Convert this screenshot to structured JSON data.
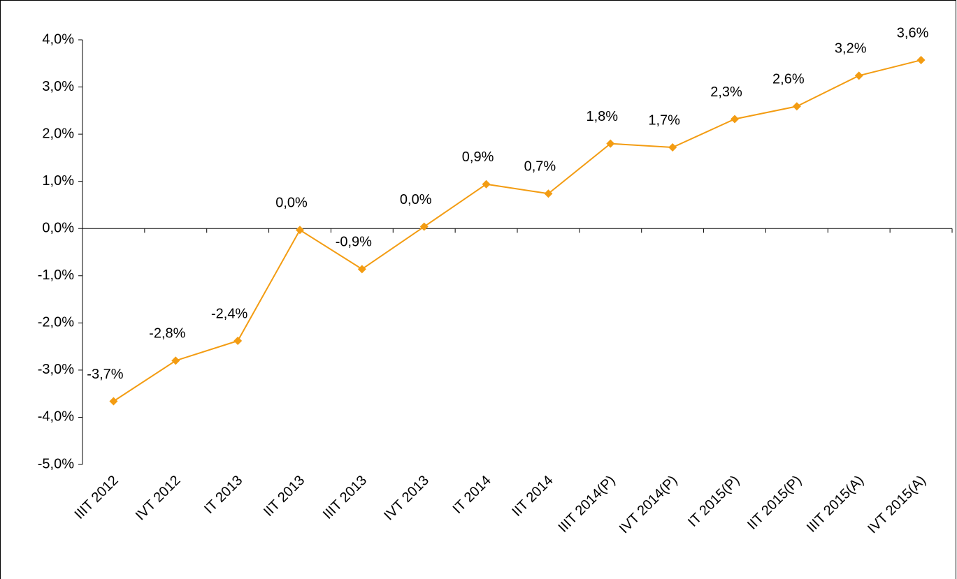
{
  "chart_data": {
    "type": "line",
    "categories": [
      "IIIT 2012",
      "IVT 2012",
      "IT 2013",
      "IIT 2013",
      "IIIT 2013",
      "IVT 2013",
      "IT 2014",
      "IIT 2014",
      "IIIT 2014(P)",
      "IVT 2014(P)",
      "IT 2015(P)",
      "IIT 2015(P)",
      "IIIT 2015(A)",
      "IVT 2015(A)"
    ],
    "values": [
      -3.66,
      -2.8,
      -2.38,
      -0.03,
      -0.86,
      0.04,
      0.94,
      0.74,
      1.8,
      1.72,
      2.32,
      2.59,
      3.24,
      3.57
    ],
    "value_labels": [
      "-3,7%",
      "-2,8%",
      "-2,4%",
      "0,0%",
      "-0,9%",
      "0,0%",
      "0,9%",
      "0,7%",
      "1,8%",
      "1,7%",
      "2,3%",
      "2,6%",
      "3,2%",
      "3,6%"
    ],
    "color": "#f39c12",
    "ylim": [
      -5,
      4
    ],
    "yticks": [
      {
        "value": -5,
        "label": "-5,0%"
      },
      {
        "value": -4,
        "label": "-4,0%"
      },
      {
        "value": -3,
        "label": "-3,0%"
      },
      {
        "value": -2,
        "label": "-2,0%"
      },
      {
        "value": -1,
        "label": "-1,0%"
      },
      {
        "value": 0,
        "label": "0,0%"
      },
      {
        "value": 1,
        "label": "1,0%"
      },
      {
        "value": 2,
        "label": "2,0%"
      },
      {
        "value": 3,
        "label": "3,0%"
      },
      {
        "value": 4,
        "label": "4,0%"
      }
    ],
    "grid": false
  }
}
